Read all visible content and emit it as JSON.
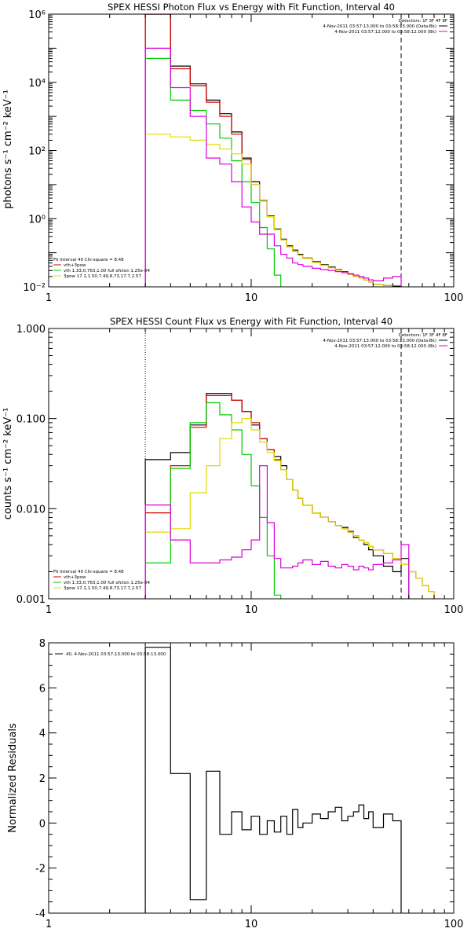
{
  "chart_data": [
    {
      "type": "line",
      "title": "SPEX HESSI Photon Flux vs Energy with Fit Function, Interval 40",
      "xlabel": "",
      "ylabel": "photons s⁻¹ cm⁻² keV⁻¹",
      "xscale": "log",
      "yscale": "log",
      "xlim": [
        1,
        100
      ],
      "ylim": [
        0.01,
        1000000
      ],
      "x_ticks": [
        {
          "v": 1,
          "label": "1"
        },
        {
          "v": 10,
          "label": "10"
        },
        {
          "v": 100,
          "label": "100"
        }
      ],
      "y_ticks": [
        {
          "v": 0.01,
          "label": "10⁻²"
        },
        {
          "v": 1,
          "label": "10⁰"
        },
        {
          "v": 100,
          "label": "10²"
        },
        {
          "v": 10000,
          "label": "10⁴"
        },
        {
          "v": 1000000,
          "label": "10⁶"
        }
      ],
      "markers": {
        "dotted_x": 3,
        "dashed_x": 55
      },
      "legend_top": {
        "header": "Detectors: 1F 3F 4F 8F",
        "entries": [
          {
            "text": "4-Nov-2011 03:57:13.000 to 03:58:13.000 (Data-Bk)",
            "color": "#000000"
          },
          {
            "text": "4-Nov-2011 03:57:12.000 to 03:58:12.000 (Bk)",
            "color": "#dd00dd"
          }
        ]
      },
      "legend_bottom": {
        "header": "Fit Interval 40   Chi-square = 8.48",
        "entries": [
          {
            "text": "vth+3pow",
            "color": "#dd0000"
          },
          {
            "text": "vth 1.33,0.763,1.00  full ofcton 1.25e-04",
            "color": "#00cc00"
          },
          {
            "text": "3pow 17.1,1.50,7.49,8.73,17.7,2.57",
            "color": "#dddd00"
          }
        ]
      },
      "edges": [
        3,
        4,
        5,
        6,
        7,
        8,
        9,
        10,
        11,
        12,
        13,
        14,
        15,
        16,
        17,
        18,
        20,
        22,
        24,
        26,
        28,
        30,
        32,
        34,
        36,
        38,
        40,
        45,
        50,
        55,
        60,
        65,
        70,
        75,
        80
      ],
      "series": [
        {
          "name": "Data-Bk",
          "color": "#000000",
          "values": [
            1000000,
            30000,
            9000,
            3000,
            1200,
            350,
            60,
            12,
            3.4,
            1.2,
            0.5,
            0.25,
            0.16,
            0.12,
            0.09,
            0.07,
            0.055,
            0.045,
            0.038,
            0.032,
            0.028,
            0.024,
            0.02,
            0.018,
            0.016,
            0.014,
            0.012,
            0.011,
            0.0105,
            null,
            null,
            null,
            null,
            null
          ]
        },
        {
          "name": "vth+3pow",
          "color": "#dd0000",
          "values": [
            1000000,
            25000,
            8000,
            2600,
            1000,
            300,
            55,
            10,
            3.3,
            1.15,
            0.48,
            0.24,
            0.15,
            0.11,
            0.085,
            0.068,
            0.052,
            0.043,
            0.036,
            0.031,
            0.027,
            0.023,
            0.02,
            0.018,
            0.016,
            0.014,
            0.012,
            0.011,
            0.0098,
            0.0088,
            null,
            null,
            null,
            null
          ]
        },
        {
          "name": "vth",
          "color": "#00cc00",
          "values": [
            50000,
            3000,
            1500,
            600,
            230,
            50,
            12,
            3.0,
            0.55,
            0.13,
            0.022,
            null,
            null,
            null,
            null,
            null,
            null,
            null,
            null,
            null,
            null,
            null,
            null,
            null,
            null,
            null,
            null,
            null,
            null,
            null,
            null,
            null,
            null,
            null
          ]
        },
        {
          "name": "3pow",
          "color": "#dddd00",
          "values": [
            300,
            250,
            200,
            150,
            110,
            80,
            40,
            10,
            3.3,
            1.15,
            0.48,
            0.24,
            0.15,
            0.11,
            0.085,
            0.068,
            0.052,
            0.043,
            0.036,
            0.031,
            0.027,
            0.023,
            0.02,
            0.018,
            0.016,
            0.014,
            0.012,
            0.011,
            0.0098,
            0.0088,
            null,
            null,
            null,
            null
          ]
        },
        {
          "name": "Bk",
          "color": "#dd00dd",
          "values": [
            100000,
            7000,
            1000,
            60,
            40,
            12,
            2.2,
            0.8,
            0.35,
            0.35,
            0.16,
            0.09,
            0.07,
            0.05,
            0.045,
            0.04,
            0.035,
            0.032,
            0.03,
            0.028,
            0.026,
            0.024,
            0.022,
            0.02,
            0.018,
            0.016,
            0.015,
            0.018,
            0.02,
            null,
            null,
            null,
            null,
            null
          ]
        }
      ]
    },
    {
      "type": "line",
      "title": "SPEX HESSI Count Flux vs Energy with Fit Function, Interval 40",
      "xlabel": "",
      "ylabel": "counts s⁻¹ cm⁻² keV⁻¹",
      "xscale": "log",
      "yscale": "log",
      "xlim": [
        1,
        100
      ],
      "ylim": [
        0.001,
        1.0
      ],
      "x_ticks": [
        {
          "v": 1,
          "label": "1"
        },
        {
          "v": 10,
          "label": "10"
        },
        {
          "v": 100,
          "label": "100"
        }
      ],
      "y_ticks": [
        {
          "v": 0.001,
          "label": "0.001"
        },
        {
          "v": 0.01,
          "label": "0.010"
        },
        {
          "v": 0.1,
          "label": "0.100"
        },
        {
          "v": 1,
          "label": "1.000"
        }
      ],
      "markers": {
        "dotted_x": 3,
        "dashed_x": 55
      },
      "legend_top": {
        "header": "Detectors: 1F 3F 4F 8F",
        "entries": [
          {
            "text": "4-Nov-2011 03:57:13.000 to 03:58:13.000 (Data-Bk)",
            "color": "#000000"
          },
          {
            "text": "4-Nov-2011 03:57:12.000 to 03:58:12.000 (Bk)",
            "color": "#dd00dd"
          }
        ]
      },
      "legend_bottom": {
        "header": "Fit Interval 40   Chi-square = 8.48",
        "entries": [
          {
            "text": "vth+3pow",
            "color": "#dd0000"
          },
          {
            "text": "vth 1.33,0.763,1.00  full ofcton 1.25e-04",
            "color": "#00cc00"
          },
          {
            "text": "3pow 17.1,1.50,7.49,8.73,17.7,2.57",
            "color": "#dddd00"
          }
        ]
      },
      "edges": [
        3,
        4,
        5,
        6,
        7,
        8,
        9,
        10,
        11,
        12,
        13,
        14,
        15,
        16,
        17,
        18,
        20,
        22,
        24,
        26,
        28,
        30,
        32,
        34,
        36,
        38,
        40,
        45,
        50,
        55,
        60,
        65,
        70,
        75,
        80
      ],
      "series": [
        {
          "name": "Data-Bk",
          "color": "#000000",
          "values": [
            0.035,
            0.042,
            0.085,
            0.19,
            0.19,
            0.16,
            0.12,
            0.085,
            0.06,
            0.045,
            0.038,
            0.03,
            0.021,
            0.016,
            0.013,
            0.011,
            0.009,
            0.008,
            0.0072,
            0.0065,
            0.0062,
            0.0056,
            0.0048,
            0.0045,
            0.004,
            0.0035,
            0.003,
            0.0023,
            0.002,
            0.0028,
            null,
            null,
            null,
            null
          ]
        },
        {
          "name": "vth+3pow",
          "color": "#dd0000",
          "values": [
            0.009,
            0.03,
            0.08,
            0.18,
            0.18,
            0.16,
            0.12,
            0.09,
            0.06,
            0.045,
            0.035,
            0.027,
            0.021,
            0.016,
            0.013,
            0.011,
            0.009,
            0.008,
            0.0072,
            0.0065,
            0.006,
            0.0055,
            0.005,
            0.0045,
            0.0042,
            0.0038,
            0.0035,
            0.0032,
            0.0028,
            0.0024,
            0.002,
            0.0017,
            0.0014,
            0.0012
          ]
        },
        {
          "name": "vth",
          "color": "#00cc00",
          "values": [
            0.0025,
            0.028,
            0.09,
            0.15,
            0.11,
            0.075,
            0.04,
            0.018,
            0.008,
            0.003,
            0.0011,
            null,
            null,
            null,
            null,
            null,
            null,
            null,
            null,
            null,
            null,
            null,
            null,
            null,
            null,
            null,
            null,
            null,
            null,
            null,
            null,
            null,
            null,
            null
          ]
        },
        {
          "name": "3pow",
          "color": "#dddd00",
          "values": [
            0.0055,
            0.006,
            0.015,
            0.03,
            0.06,
            0.09,
            0.1,
            0.075,
            0.055,
            0.042,
            0.034,
            0.027,
            0.021,
            0.016,
            0.013,
            0.011,
            0.009,
            0.008,
            0.0072,
            0.0065,
            0.006,
            0.0055,
            0.005,
            0.0045,
            0.0042,
            0.0038,
            0.0035,
            0.0032,
            0.0028,
            0.0024,
            0.002,
            0.0017,
            0.0014,
            0.0012
          ]
        },
        {
          "name": "Bk",
          "color": "#dd00dd",
          "values": [
            0.011,
            0.0045,
            0.0025,
            0.0025,
            0.0027,
            0.0029,
            0.0035,
            0.0045,
            0.03,
            0.007,
            0.0028,
            0.0022,
            0.0022,
            0.0023,
            0.0025,
            0.0027,
            0.0024,
            0.0026,
            0.0023,
            0.0022,
            0.0024,
            0.0023,
            0.0021,
            0.0023,
            0.0022,
            0.0021,
            0.0024,
            0.0025,
            0.0027,
            0.004,
            null,
            null,
            null,
            null
          ]
        }
      ]
    },
    {
      "type": "line",
      "title": "",
      "xlabel": "",
      "ylabel": "Normalized Residuals",
      "xscale": "log",
      "yscale": "linear",
      "xlim": [
        1,
        100
      ],
      "ylim": [
        -4,
        8
      ],
      "x_ticks": [
        {
          "v": 1,
          "label": "1"
        },
        {
          "v": 10,
          "label": "10"
        },
        {
          "v": 100,
          "label": "100"
        }
      ],
      "y_ticks": [
        {
          "v": -4,
          "label": "-4"
        },
        {
          "v": -2,
          "label": "-2"
        },
        {
          "v": 0,
          "label": "0"
        },
        {
          "v": 2,
          "label": "2"
        },
        {
          "v": 4,
          "label": "4"
        },
        {
          "v": 6,
          "label": "6"
        },
        {
          "v": 8,
          "label": "8"
        }
      ],
      "legend_top": {
        "header": "",
        "entries": [
          {
            "text": "40,  4-Nov-2011 03:57:13.000 to 03:58:13.000",
            "color": "#000000"
          }
        ]
      },
      "edges": [
        3,
        4,
        5,
        6,
        7,
        8,
        9,
        10,
        11,
        12,
        13,
        14,
        15,
        16,
        17,
        18,
        20,
        22,
        24,
        26,
        28,
        30,
        32,
        34,
        36,
        38,
        40,
        45,
        50,
        55
      ],
      "series": [
        {
          "name": "40",
          "color": "#000000",
          "values": [
            7.8,
            2.2,
            -3.4,
            2.3,
            -0.5,
            0.5,
            -0.3,
            0.3,
            -0.5,
            0.1,
            -0.4,
            0.3,
            -0.5,
            0.6,
            -0.2,
            0.0,
            0.4,
            0.2,
            0.5,
            0.7,
            0.1,
            0.3,
            0.5,
            0.8,
            0.2,
            0.5,
            -0.2,
            0.4,
            0.1
          ]
        }
      ]
    }
  ]
}
